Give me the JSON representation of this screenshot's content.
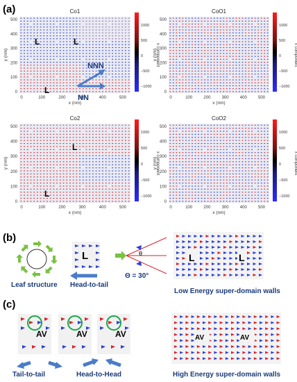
{
  "panel_labels": {
    "a": "(a)",
    "b": "(b)",
    "c": "(c)"
  },
  "colors": {
    "blue": "#2b3fd6",
    "red": "#d9232a",
    "arrow_blue": "#4a7cc8",
    "arrow_green": "#79c142",
    "circle_green": "#1aa64a",
    "plot_bg": "#e9eaf2"
  },
  "plots": [
    {
      "title": "Co1",
      "xlabel": "x (nm)",
      "ylabel": "y (nm)",
      "cbar_label": "x component",
      "xticks": [
        "0",
        "100",
        "200",
        "300",
        "400",
        "500"
      ],
      "yticks": [
        "0",
        "100",
        "200",
        "300",
        "400",
        "500"
      ],
      "cbar_ticks": [
        "1000",
        "500",
        "0",
        "−500",
        "−1000"
      ],
      "markers": [
        "L",
        "L",
        "L"
      ],
      "annotations": [
        "NNN",
        "NN"
      ]
    },
    {
      "title": "CoO1",
      "xlabel": "x (nm)",
      "ylabel": "y (nm)",
      "cbar_label": "x component",
      "xticks": [
        "0",
        "100",
        "200",
        "300",
        "400",
        "500"
      ],
      "yticks": [
        "0",
        "100",
        "200",
        "300",
        "400",
        "500"
      ],
      "cbar_ticks": [
        "1000",
        "500",
        "0",
        "−500",
        "−1000"
      ],
      "markers": [],
      "annotations": []
    },
    {
      "title": "Co2",
      "xlabel": "x (nm)",
      "ylabel": "y (nm)",
      "cbar_label": "x component",
      "xticks": [
        "0",
        "100",
        "200",
        "300",
        "400",
        "500"
      ],
      "yticks": [
        "0",
        "100",
        "200",
        "300",
        "400",
        "500"
      ],
      "cbar_ticks": [
        "1000",
        "500",
        "0",
        "−500",
        "−1000"
      ],
      "markers": [
        "L",
        "L"
      ],
      "annotations": []
    },
    {
      "title": "CoO2",
      "xlabel": "x (nm)",
      "ylabel": "y (nm)",
      "cbar_label": "x component",
      "xticks": [
        "0",
        "100",
        "200",
        "300",
        "400",
        "500"
      ],
      "yticks": [
        "0",
        "100",
        "200",
        "300",
        "400",
        "500"
      ],
      "cbar_ticks": [
        "1000",
        "500",
        "0",
        "−500",
        "−1000"
      ],
      "markers": [],
      "annotations": []
    }
  ],
  "b": {
    "leaf_label": "Leaf structure",
    "head_tail_label": "Head-to-tail",
    "L_box": "L",
    "theta_symbol": "θ",
    "theta_eq": "Θ = 30°",
    "low_walls_label": "Low Energy super-domain walls",
    "wall_L": [
      "L",
      "L"
    ]
  },
  "c": {
    "av": [
      "AV",
      "AV",
      "AV"
    ],
    "tail_label": "Tail-to-tail",
    "head_label": "Head-to-Head",
    "high_walls_label": "High Energy super-domain walls",
    "wall_av": [
      "AV",
      "AV"
    ]
  }
}
